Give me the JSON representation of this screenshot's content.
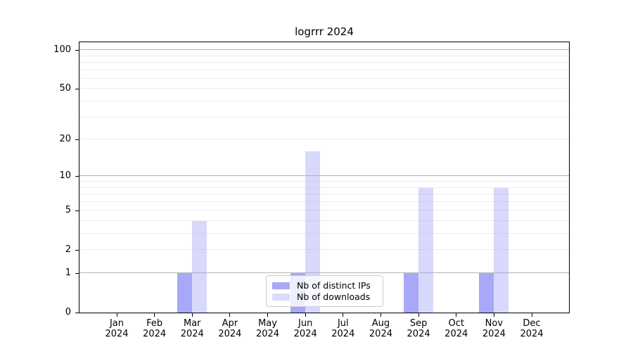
{
  "title": "logrrr 2024",
  "colors": {
    "background": "#ffffff",
    "spine": "#000000",
    "grid_minor": "#ebebeb",
    "grid_major": "#b3b3b3",
    "bar_fill_base": "#a8a8f8"
  },
  "chart_data": {
    "type": "bar",
    "title": "logrrr 2024",
    "categories": [
      "Jan",
      "Feb",
      "Mar",
      "Apr",
      "May",
      "Jun",
      "Jul",
      "Aug",
      "Sep",
      "Oct",
      "Nov",
      "Dec"
    ],
    "year_label": "2024",
    "series": [
      {
        "name": "Nb of distinct IPs",
        "values": [
          0,
          0,
          1,
          0,
          0,
          1,
          0,
          0,
          1,
          0,
          1,
          0
        ],
        "fill": "rgba(168,168,248,1)",
        "swatch": "#a8a8f8"
      },
      {
        "name": "Nb of downloads",
        "values": [
          0,
          0,
          4,
          0,
          0,
          16,
          0,
          0,
          8,
          0,
          8,
          0
        ],
        "fill": "rgba(168,168,248,0.45)",
        "swatch": "#dcdcfa"
      }
    ],
    "yscale": "log1p",
    "ylim": [
      0,
      115
    ],
    "y_ticks": [
      0,
      1,
      2,
      5,
      10,
      20,
      50,
      100
    ],
    "grid": {
      "minor": [
        2,
        3,
        4,
        5,
        6,
        7,
        8,
        9,
        20,
        30,
        40,
        50,
        60,
        70,
        80,
        90
      ],
      "major": [
        1,
        10,
        100
      ]
    },
    "xlabel": "",
    "ylabel": "",
    "legend_position": "lower center"
  }
}
